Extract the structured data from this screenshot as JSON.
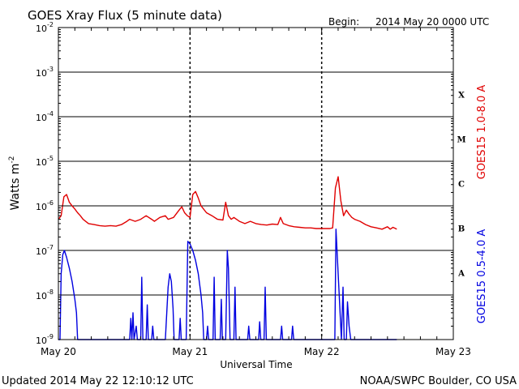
{
  "header": {
    "title": "GOES Xray Flux (5 minute data)",
    "begin_label": "Begin:",
    "begin_value": "2014 May 20 0000 UTC"
  },
  "footer": {
    "updated": "Updated 2014 May 22 12:10:12 UTC",
    "credit": "NOAA/SWPC Boulder, CO USA"
  },
  "colors": {
    "long_channel": "#e00000",
    "short_channel": "#0000e0",
    "grid": "#000000"
  },
  "chart_data": {
    "type": "line",
    "title": "GOES Xray Flux (5 minute data)",
    "xlabel": "Universal Time",
    "ylabel_base": "Watts m",
    "ylabel_exp": "-2",
    "yscale": "log",
    "ylim": [
      1e-09,
      0.01
    ],
    "xlim": [
      0,
      72
    ],
    "x_unit": "hours since 2014 May 20 0000 UTC",
    "x_ticks": [
      {
        "x": 0,
        "label": "May 20"
      },
      {
        "x": 24,
        "label": "May 21"
      },
      {
        "x": 48,
        "label": "May 22"
      },
      {
        "x": 72,
        "label": "May 23"
      }
    ],
    "y_ticks": [
      {
        "exp": -9,
        "label_base": "10",
        "label_exp": "-9"
      },
      {
        "exp": -8,
        "label_base": "10",
        "label_exp": "-8"
      },
      {
        "exp": -7,
        "label_base": "10",
        "label_exp": "-7"
      },
      {
        "exp": -6,
        "label_base": "10",
        "label_exp": "-6"
      },
      {
        "exp": -5,
        "label_base": "10",
        "label_exp": "-5"
      },
      {
        "exp": -4,
        "label_base": "10",
        "label_exp": "-4"
      },
      {
        "exp": -3,
        "label_base": "10",
        "label_exp": "-3"
      },
      {
        "exp": -2,
        "label_base": "10",
        "label_exp": "-2"
      }
    ],
    "flare_classes": [
      {
        "label": "A",
        "exp": -7.5
      },
      {
        "label": "B",
        "exp": -6.5
      },
      {
        "label": "C",
        "exp": -5.5
      },
      {
        "label": "M",
        "exp": -4.5
      },
      {
        "label": "X",
        "exp": -3.5
      }
    ],
    "grid": true,
    "series": [
      {
        "name": "GOES15 1.0-8.0 A",
        "color": "#e00000",
        "points": [
          [
            0,
            5e-07
          ],
          [
            0.5,
            6e-07
          ],
          [
            1.0,
            1.6e-06
          ],
          [
            1.5,
            1.8e-06
          ],
          [
            2.0,
            1.2e-06
          ],
          [
            2.5,
            1e-06
          ],
          [
            3.0,
            8.5e-07
          ],
          [
            3.5,
            7e-07
          ],
          [
            4.0,
            6e-07
          ],
          [
            4.5,
            5e-07
          ],
          [
            5.5,
            4e-07
          ],
          [
            6.5,
            3.8e-07
          ],
          [
            7.5,
            3.6e-07
          ],
          [
            8.5,
            3.5e-07
          ],
          [
            9.5,
            3.6e-07
          ],
          [
            10.5,
            3.5e-07
          ],
          [
            11.5,
            3.8e-07
          ],
          [
            12.5,
            4.5e-07
          ],
          [
            13.0,
            5e-07
          ],
          [
            14.0,
            4.5e-07
          ],
          [
            15.0,
            5e-07
          ],
          [
            16.0,
            6e-07
          ],
          [
            17.0,
            5e-07
          ],
          [
            17.5,
            4.5e-07
          ],
          [
            18.5,
            5.5e-07
          ],
          [
            19.5,
            6e-07
          ],
          [
            20.0,
            5e-07
          ],
          [
            21.0,
            5.5e-07
          ],
          [
            22.0,
            8e-07
          ],
          [
            22.5,
            9.5e-07
          ],
          [
            23.0,
            7e-07
          ],
          [
            23.5,
            6e-07
          ],
          [
            24.0,
            5.5e-07
          ],
          [
            24.5,
            1.8e-06
          ],
          [
            25.0,
            2.1e-06
          ],
          [
            25.5,
            1.5e-06
          ],
          [
            26.0,
            1e-06
          ],
          [
            27.0,
            7e-07
          ],
          [
            28.0,
            6e-07
          ],
          [
            29.0,
            5e-07
          ],
          [
            30.0,
            4.8e-07
          ],
          [
            30.5,
            1.2e-06
          ],
          [
            31.0,
            6e-07
          ],
          [
            31.5,
            5e-07
          ],
          [
            32.0,
            5.5e-07
          ],
          [
            33.0,
            4.5e-07
          ],
          [
            34.0,
            4e-07
          ],
          [
            35.0,
            4.5e-07
          ],
          [
            36.0,
            4e-07
          ],
          [
            37.0,
            3.8e-07
          ],
          [
            38.0,
            3.7e-07
          ],
          [
            39.0,
            3.9e-07
          ],
          [
            40.0,
            3.8e-07
          ],
          [
            40.5,
            5.5e-07
          ],
          [
            41.0,
            4e-07
          ],
          [
            42.0,
            3.6e-07
          ],
          [
            43.0,
            3.4e-07
          ],
          [
            44.0,
            3.3e-07
          ],
          [
            45.0,
            3.2e-07
          ],
          [
            46.0,
            3.2e-07
          ],
          [
            47.0,
            3.1e-07
          ],
          [
            48.0,
            3.1e-07
          ],
          [
            49.5,
            3.1e-07
          ],
          [
            50.0,
            3.2e-07
          ],
          [
            50.5,
            2.5e-06
          ],
          [
            51.0,
            4.5e-06
          ],
          [
            51.5,
            1.3e-06
          ],
          [
            52.0,
            6e-07
          ],
          [
            52.5,
            8e-07
          ],
          [
            53.0,
            6.5e-07
          ],
          [
            53.5,
            5.5e-07
          ],
          [
            54.0,
            5e-07
          ],
          [
            55.0,
            4.5e-07
          ],
          [
            56.0,
            3.8e-07
          ],
          [
            57.0,
            3.4e-07
          ],
          [
            58.0,
            3.2e-07
          ],
          [
            59.0,
            3e-07
          ],
          [
            60.0,
            3.4e-07
          ],
          [
            60.5,
            3e-07
          ],
          [
            61.0,
            3.3e-07
          ],
          [
            61.7,
            3e-07
          ]
        ]
      },
      {
        "name": "GOES15 0.5-4.0 A",
        "color": "#0000e0",
        "points": [
          [
            0,
            1e-09
          ],
          [
            0.3,
            1e-09
          ],
          [
            0.5,
            3e-08
          ],
          [
            0.8,
            8e-08
          ],
          [
            1.1,
            1e-07
          ],
          [
            1.5,
            7e-08
          ],
          [
            2.0,
            4e-08
          ],
          [
            2.5,
            2e-08
          ],
          [
            3.0,
            8e-09
          ],
          [
            3.3,
            4e-09
          ],
          [
            3.5,
            1e-09
          ],
          [
            4.0,
            1e-09
          ],
          [
            13.0,
            1e-09
          ],
          [
            13.2,
            3e-09
          ],
          [
            13.4,
            1e-09
          ],
          [
            13.6,
            4e-09
          ],
          [
            13.8,
            1e-09
          ],
          [
            14.2,
            2e-09
          ],
          [
            14.4,
            1e-09
          ],
          [
            15.0,
            1e-09
          ],
          [
            15.2,
            2.5e-08
          ],
          [
            15.4,
            1e-09
          ],
          [
            16.0,
            1e-09
          ],
          [
            16.2,
            6e-09
          ],
          [
            16.4,
            1e-09
          ],
          [
            17.0,
            1e-09
          ],
          [
            17.2,
            2e-09
          ],
          [
            17.4,
            1e-09
          ],
          [
            19.5,
            1e-09
          ],
          [
            20.0,
            1.5e-08
          ],
          [
            20.3,
            3e-08
          ],
          [
            20.6,
            2e-08
          ],
          [
            20.9,
            5e-09
          ],
          [
            21.1,
            1e-09
          ],
          [
            22.0,
            1e-09
          ],
          [
            22.2,
            3e-09
          ],
          [
            22.4,
            1e-09
          ],
          [
            23.3,
            1e-09
          ],
          [
            23.6,
            1.6e-07
          ],
          [
            24.0,
            1.4e-07
          ],
          [
            24.5,
            1e-07
          ],
          [
            25.0,
            6e-08
          ],
          [
            25.5,
            3e-08
          ],
          [
            26.0,
            1e-08
          ],
          [
            26.3,
            4e-09
          ],
          [
            26.5,
            1e-09
          ],
          [
            27.0,
            1e-09
          ],
          [
            27.2,
            2e-09
          ],
          [
            27.4,
            1e-09
          ],
          [
            28.2,
            1e-09
          ],
          [
            28.4,
            2.5e-08
          ],
          [
            28.6,
            1e-09
          ],
          [
            29.5,
            1e-09
          ],
          [
            29.7,
            8e-09
          ],
          [
            29.9,
            1e-09
          ],
          [
            30.5,
            1e-09
          ],
          [
            30.8,
            1e-07
          ],
          [
            31.0,
            4e-08
          ],
          [
            31.3,
            1e-09
          ],
          [
            32.0,
            1e-09
          ],
          [
            32.2,
            1.5e-08
          ],
          [
            32.4,
            1e-09
          ],
          [
            34.5,
            1e-09
          ],
          [
            34.7,
            2e-09
          ],
          [
            34.9,
            1e-09
          ],
          [
            36.5,
            1e-09
          ],
          [
            36.7,
            2.5e-09
          ],
          [
            36.9,
            1e-09
          ],
          [
            37.5,
            1e-09
          ],
          [
            37.7,
            1.5e-08
          ],
          [
            37.9,
            1e-09
          ],
          [
            40.5,
            1e-09
          ],
          [
            40.7,
            2e-09
          ],
          [
            40.9,
            1e-09
          ],
          [
            42.5,
            1e-09
          ],
          [
            42.7,
            2e-09
          ],
          [
            42.9,
            1e-09
          ],
          [
            50.4,
            1e-09
          ],
          [
            50.6,
            3e-07
          ],
          [
            50.8,
            1e-07
          ],
          [
            51.0,
            3e-08
          ],
          [
            51.2,
            1e-08
          ],
          [
            51.4,
            3e-09
          ],
          [
            51.6,
            1e-09
          ],
          [
            51.9,
            1.5e-08
          ],
          [
            52.1,
            1e-09
          ],
          [
            52.5,
            1e-09
          ],
          [
            52.7,
            7e-09
          ],
          [
            53.0,
            2e-09
          ],
          [
            53.3,
            1e-09
          ],
          [
            61.7,
            1e-09
          ]
        ]
      }
    ],
    "series_labels": [
      "GOES15 1.0-8.0 A",
      "GOES15 0.5-4.0 A"
    ]
  }
}
